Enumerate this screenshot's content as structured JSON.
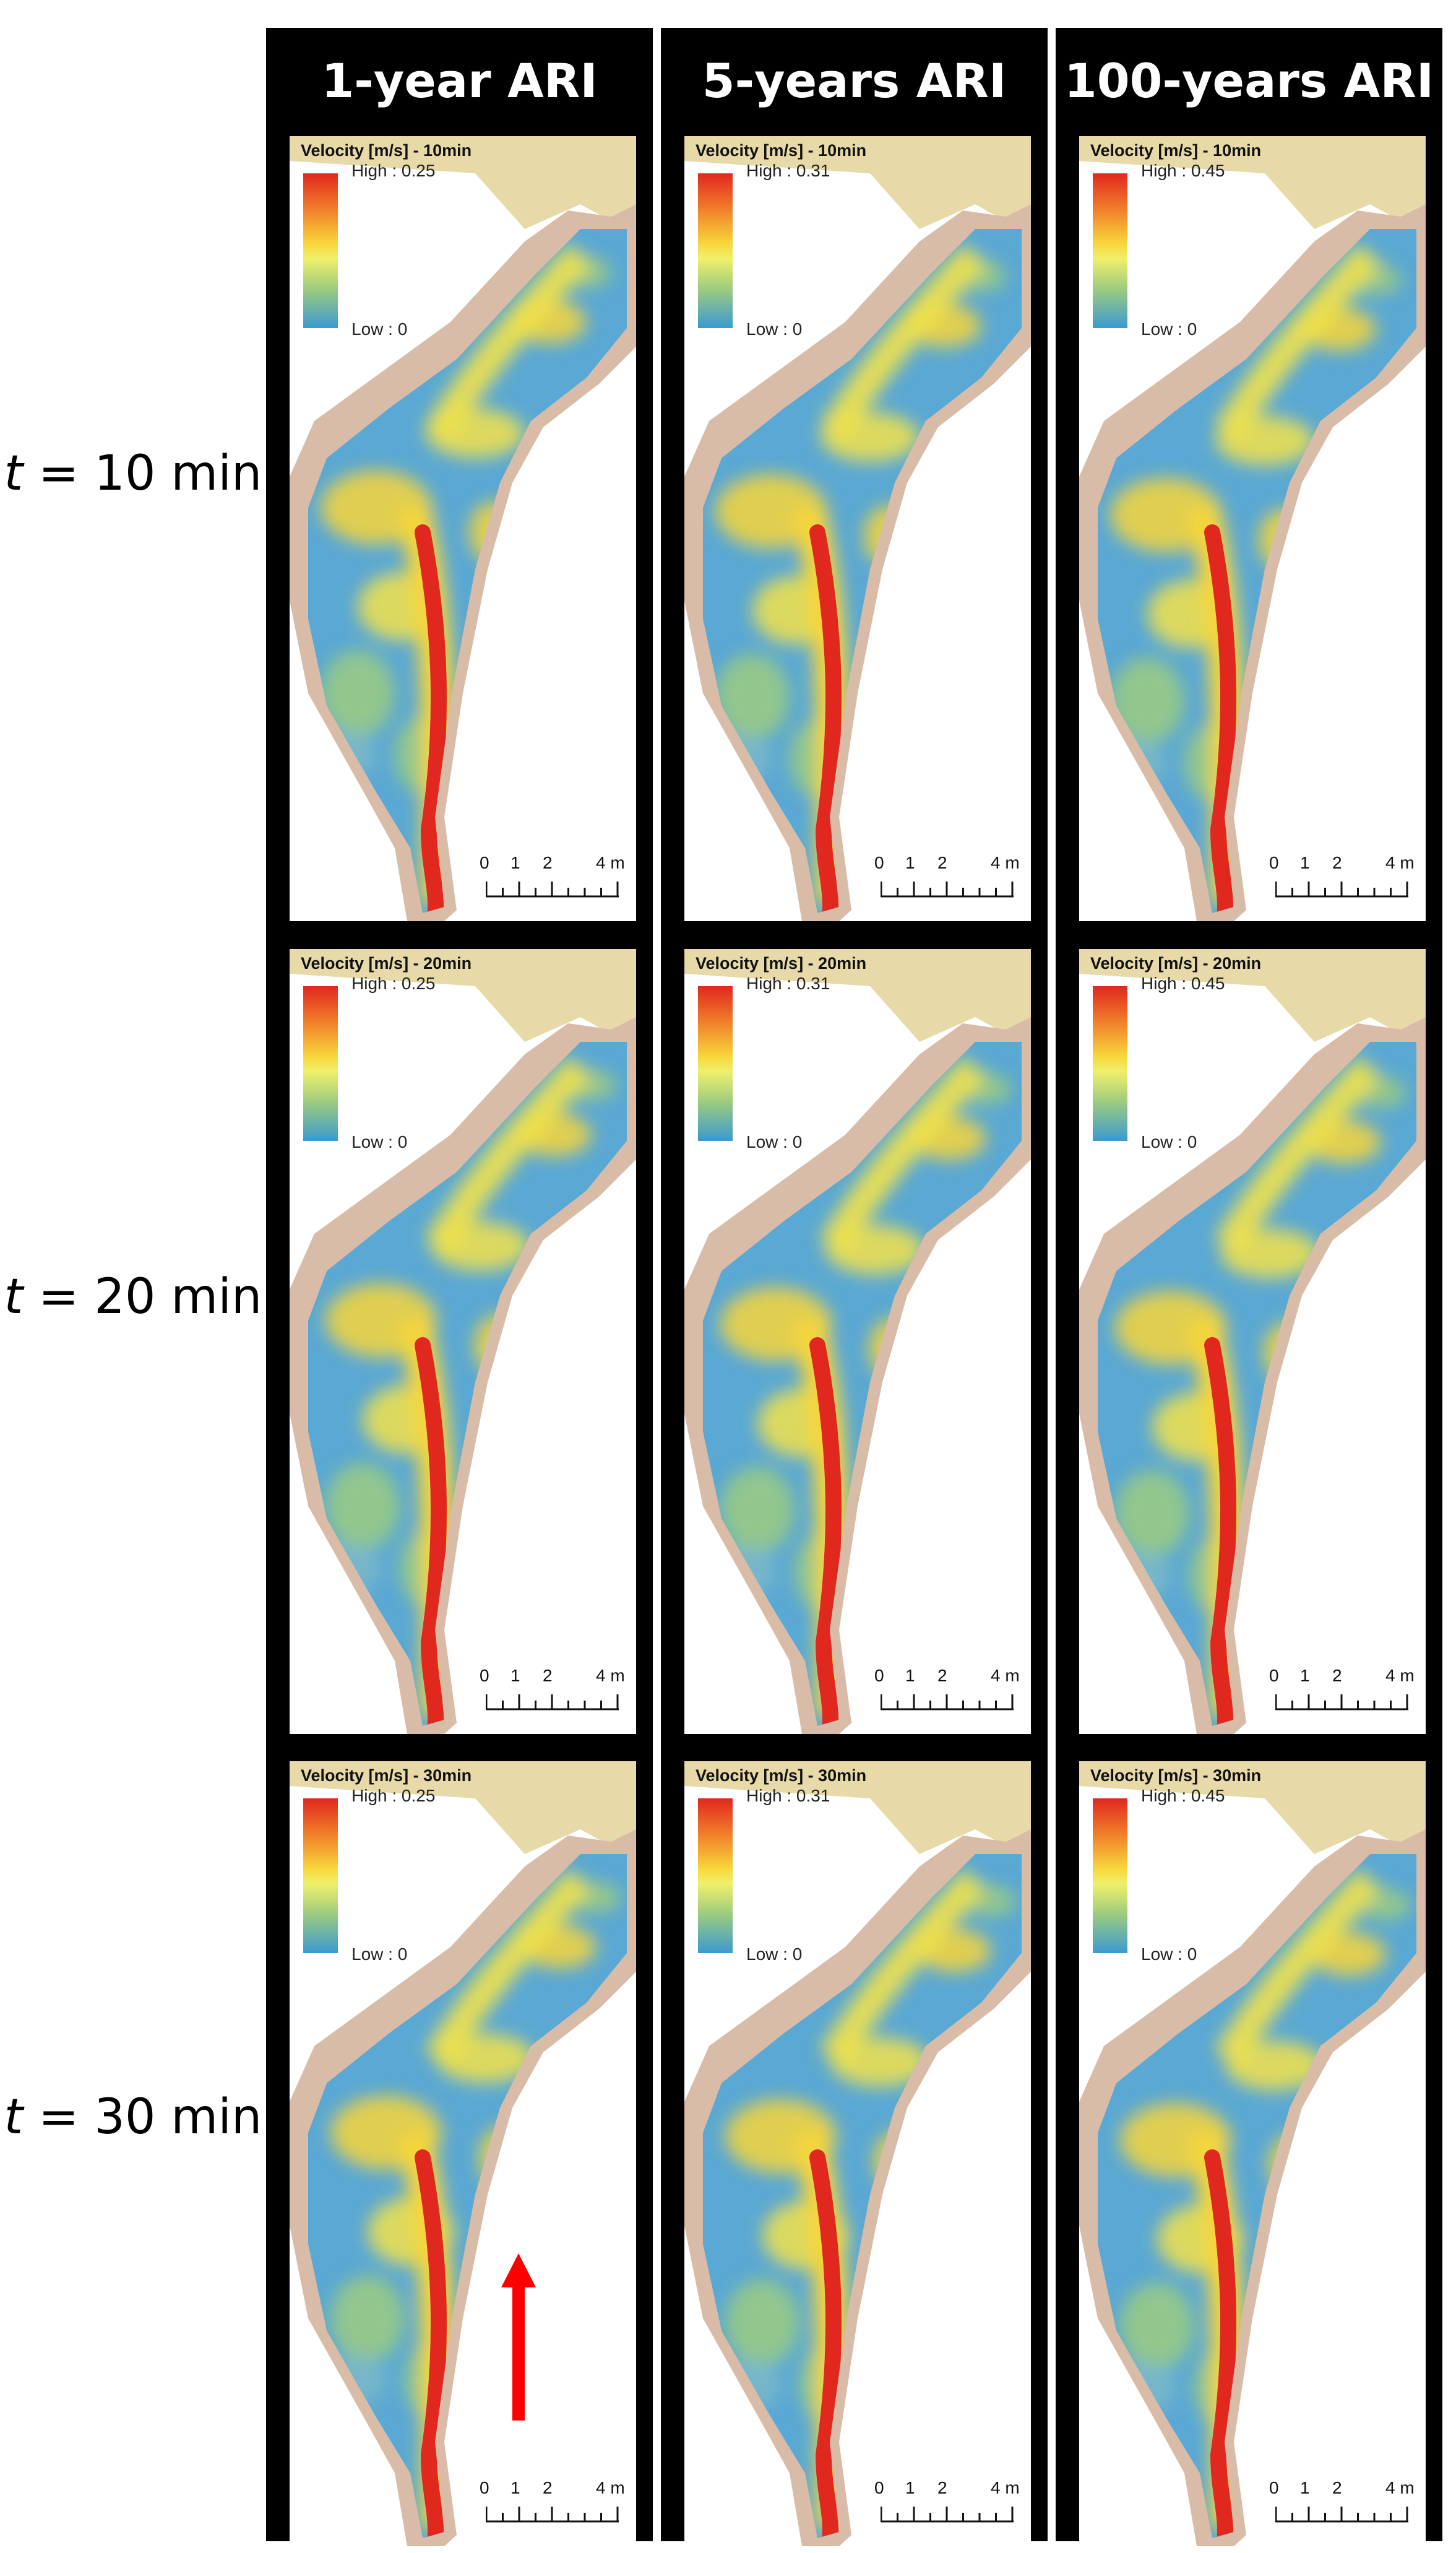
{
  "rows": [
    {
      "label_var": "t",
      "label_rest": " = 10 min"
    },
    {
      "label_var": "t",
      "label_rest": " = 20 min"
    },
    {
      "label_var": "t",
      "label_rest": " = 30 min"
    }
  ],
  "columns": [
    {
      "header": "1-year ARI",
      "panels": [
        {
          "title": "Velocity [m/s] - 10min",
          "high": "High : 0.25",
          "low": "Low : 0"
        },
        {
          "title": "Velocity [m/s] - 20min",
          "high": "High : 0.25",
          "low": "Low : 0"
        },
        {
          "title": "Velocity [m/s] - 30min",
          "high": "High : 0.25",
          "low": "Low : 0"
        }
      ]
    },
    {
      "header": "5-years ARI",
      "panels": [
        {
          "title": "Velocity [m/s] - 10min",
          "high": "High : 0.31",
          "low": "Low : 0"
        },
        {
          "title": "Velocity [m/s] - 20min",
          "high": "High : 0.31",
          "low": "Low : 0"
        },
        {
          "title": "Velocity [m/s] - 30min",
          "high": "High : 0.31",
          "low": "Low : 0"
        }
      ]
    },
    {
      "header": "100-years ARI",
      "panels": [
        {
          "title": "Velocity [m/s] - 10min",
          "high": "High : 0.45",
          "low": "Low : 0"
        },
        {
          "title": "Velocity [m/s] - 20min",
          "high": "High : 0.45",
          "low": "Low : 0"
        },
        {
          "title": "Velocity [m/s] - 30min",
          "high": "High : 0.45",
          "low": "Low : 0"
        }
      ]
    }
  ],
  "scale": {
    "l0": "0",
    "l1": "1",
    "l2": "2",
    "l4": "4",
    "unit": "m"
  },
  "colors": {
    "high": "#e0281e",
    "mid": "#f7d53a",
    "low": "#3a9ad0",
    "bank": "#d9bca8",
    "terrain": "#e7d9a8",
    "arrow": "#ff0000"
  },
  "annotations": {
    "flow_arrow_icon": "arrow-up-icon"
  }
}
